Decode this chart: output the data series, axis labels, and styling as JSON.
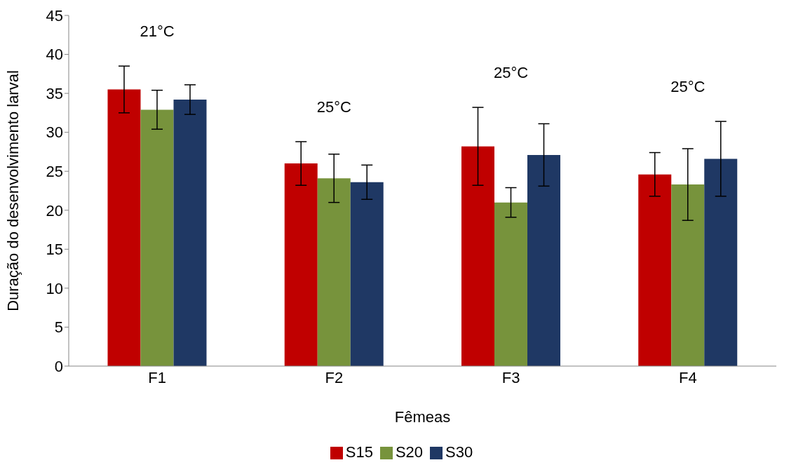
{
  "chart_data": {
    "type": "bar",
    "xlabel": "Fêmeas",
    "ylabel": "Duração do desenvolvimento larval",
    "categories": [
      "F1",
      "F2",
      "F3",
      "F4"
    ],
    "series": [
      {
        "name": "S15",
        "color": "#c00000",
        "values": [
          35.5,
          26.0,
          28.2,
          24.6
        ],
        "errors": [
          3.0,
          2.8,
          5.0,
          2.8
        ]
      },
      {
        "name": "S20",
        "color": "#77933c",
        "values": [
          32.9,
          24.1,
          21.0,
          23.3
        ],
        "errors": [
          2.5,
          3.1,
          1.9,
          4.6
        ]
      },
      {
        "name": "S30",
        "color": "#1f3864",
        "values": [
          34.2,
          23.6,
          27.1,
          26.6
        ],
        "errors": [
          1.9,
          2.2,
          4.0,
          4.8
        ]
      }
    ],
    "ylim": [
      0,
      45
    ],
    "yticks": [
      0,
      5,
      10,
      15,
      20,
      25,
      30,
      35,
      40,
      45
    ],
    "grid": false,
    "legend": "bottom",
    "annotations": [
      "21°C",
      "25°C",
      "25°C",
      "25°C"
    ]
  }
}
